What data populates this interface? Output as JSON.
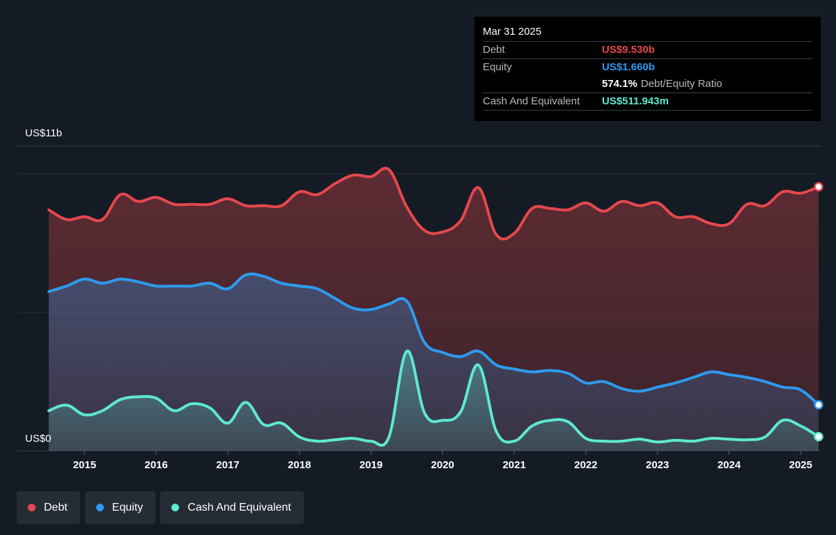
{
  "tooltip": {
    "date": "Mar 31 2025",
    "debt_label": "Debt",
    "debt_value": "US$9.530b",
    "equity_label": "Equity",
    "equity_value": "US$1.660b",
    "ratio_value": "574.1%",
    "ratio_label": "Debt/Equity Ratio",
    "cash_label": "Cash And Equivalent",
    "cash_value": "US$511.943m"
  },
  "colors": {
    "debt": "#e5484d",
    "equity": "#2d9bef",
    "cash": "#5ee9d1",
    "background": "#151b24"
  },
  "legend": [
    {
      "label": "Debt",
      "color": "#e5484d"
    },
    {
      "label": "Equity",
      "color": "#2d9bef"
    },
    {
      "label": "Cash And Equivalent",
      "color": "#5ee9d1"
    }
  ],
  "chart_data": {
    "type": "area",
    "title": "",
    "xlabel": "",
    "ylabel": "",
    "y_top_label": "US$11b",
    "y_bottom_label": "US$0",
    "ylim": [
      0,
      11
    ],
    "unit": "US$b",
    "x_ticks": [
      2015,
      2016,
      2017,
      2018,
      2019,
      2020,
      2021,
      2022,
      2023,
      2024,
      2025
    ],
    "xlim": [
      2014.5,
      2025.25
    ],
    "grid": true,
    "legend_position": "bottom-left",
    "series": [
      {
        "name": "Debt",
        "color": "#e5484d",
        "x": [
          2014.5,
          2014.75,
          2015.0,
          2015.25,
          2015.5,
          2015.75,
          2016.0,
          2016.25,
          2016.5,
          2016.75,
          2017.0,
          2017.25,
          2017.5,
          2017.75,
          2018.0,
          2018.25,
          2018.5,
          2018.75,
          2019.0,
          2019.25,
          2019.5,
          2019.75,
          2020.0,
          2020.25,
          2020.5,
          2020.75,
          2021.0,
          2021.25,
          2021.5,
          2021.75,
          2022.0,
          2022.25,
          2022.5,
          2022.75,
          2023.0,
          2023.25,
          2023.5,
          2023.75,
          2024.0,
          2024.25,
          2024.5,
          2024.75,
          2025.0,
          2025.25
        ],
        "values": [
          8.7,
          8.35,
          8.45,
          8.35,
          9.25,
          9.0,
          9.15,
          8.9,
          8.9,
          8.9,
          9.1,
          8.85,
          8.85,
          8.85,
          9.35,
          9.25,
          9.65,
          9.95,
          9.9,
          10.15,
          8.8,
          7.95,
          7.9,
          8.3,
          9.5,
          7.8,
          7.85,
          8.75,
          8.75,
          8.7,
          8.95,
          8.65,
          9.0,
          8.85,
          8.95,
          8.45,
          8.45,
          8.2,
          8.2,
          8.9,
          8.85,
          9.35,
          9.3,
          9.53
        ]
      },
      {
        "name": "Equity",
        "color": "#2d9bef",
        "x": [
          2014.5,
          2014.75,
          2015.0,
          2015.25,
          2015.5,
          2015.75,
          2016.0,
          2016.25,
          2016.5,
          2016.75,
          2017.0,
          2017.25,
          2017.5,
          2017.75,
          2018.0,
          2018.25,
          2018.5,
          2018.75,
          2019.0,
          2019.25,
          2019.5,
          2019.75,
          2020.0,
          2020.25,
          2020.5,
          2020.75,
          2021.0,
          2021.25,
          2021.5,
          2021.75,
          2022.0,
          2022.25,
          2022.5,
          2022.75,
          2023.0,
          2023.25,
          2023.5,
          2023.75,
          2024.0,
          2024.25,
          2024.5,
          2024.75,
          2025.0,
          2025.25
        ],
        "values": [
          5.75,
          5.95,
          6.2,
          6.05,
          6.2,
          6.1,
          5.95,
          5.95,
          5.95,
          6.05,
          5.85,
          6.35,
          6.3,
          6.05,
          5.95,
          5.85,
          5.5,
          5.15,
          5.1,
          5.3,
          5.4,
          3.9,
          3.55,
          3.4,
          3.6,
          3.1,
          2.95,
          2.85,
          2.9,
          2.8,
          2.45,
          2.5,
          2.25,
          2.15,
          2.3,
          2.45,
          2.65,
          2.85,
          2.75,
          2.65,
          2.5,
          2.3,
          2.2,
          1.66
        ]
      },
      {
        "name": "Cash And Equivalent",
        "color": "#5ee9d1",
        "x": [
          2014.5,
          2014.75,
          2015.0,
          2015.25,
          2015.5,
          2015.75,
          2016.0,
          2016.25,
          2016.5,
          2016.75,
          2017.0,
          2017.25,
          2017.5,
          2017.75,
          2018.0,
          2018.25,
          2018.5,
          2018.75,
          2019.0,
          2019.25,
          2019.5,
          2019.75,
          2020.0,
          2020.25,
          2020.5,
          2020.75,
          2021.0,
          2021.25,
          2021.5,
          2021.75,
          2022.0,
          2022.25,
          2022.5,
          2022.75,
          2023.0,
          2023.25,
          2023.5,
          2023.75,
          2024.0,
          2024.25,
          2024.5,
          2024.75,
          2025.0,
          2025.25
        ],
        "values": [
          1.45,
          1.65,
          1.3,
          1.45,
          1.85,
          1.95,
          1.9,
          1.45,
          1.7,
          1.55,
          1.0,
          1.75,
          0.95,
          1.0,
          0.5,
          0.35,
          0.4,
          0.45,
          0.35,
          0.5,
          3.6,
          1.35,
          1.1,
          1.4,
          3.1,
          0.7,
          0.35,
          0.9,
          1.1,
          1.05,
          0.45,
          0.35,
          0.35,
          0.42,
          0.32,
          0.38,
          0.35,
          0.45,
          0.42,
          0.4,
          0.5,
          1.1,
          0.9,
          0.51
        ]
      }
    ]
  }
}
